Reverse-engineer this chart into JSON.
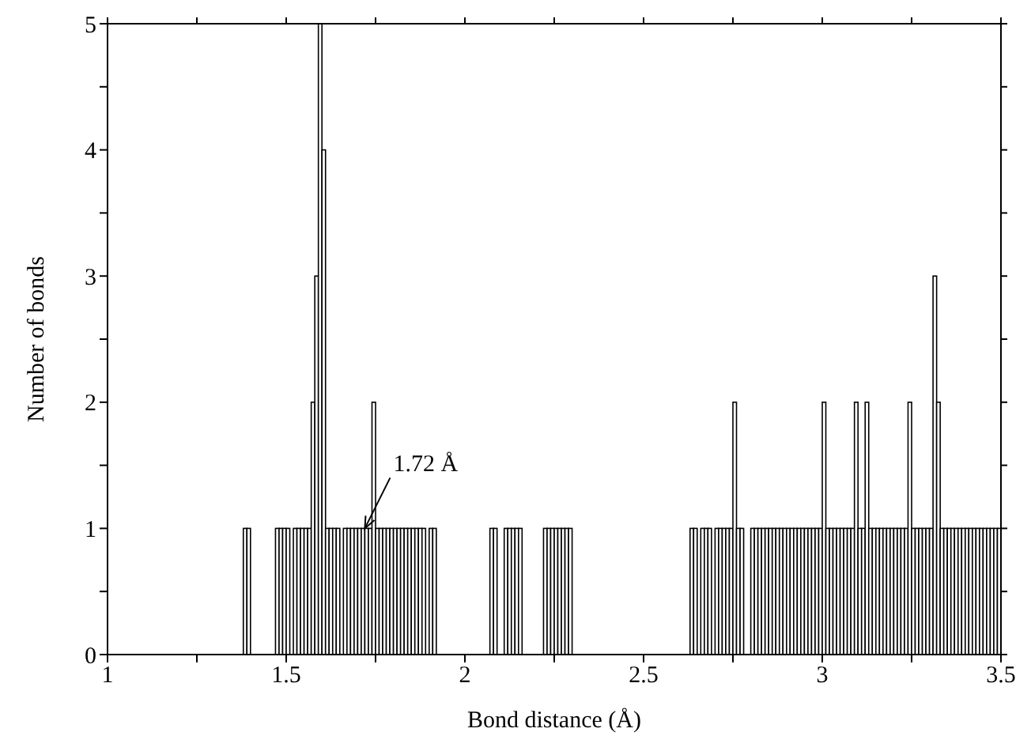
{
  "chart_data": {
    "type": "histogram",
    "xlabel": "Bond distance (Å)",
    "ylabel": "Number of bonds",
    "bins": [
      1.35,
      1.36,
      1.37,
      1.38,
      1.39,
      1.4,
      1.41,
      1.42,
      1.43,
      1.44,
      1.45,
      1.46,
      1.47,
      1.48,
      1.49,
      1.5,
      1.51,
      1.52,
      1.53,
      1.54,
      1.55,
      1.56,
      1.57,
      1.58,
      1.59,
      1.6,
      1.61,
      1.62,
      1.63,
      1.64,
      1.65,
      1.66,
      1.67,
      1.68,
      1.69,
      1.7,
      1.71,
      1.72,
      1.73,
      1.74,
      1.75,
      1.76,
      1.77,
      1.78,
      1.79,
      1.8,
      1.81,
      1.82,
      1.83,
      1.84,
      1.85,
      1.86,
      1.87,
      1.88,
      1.89,
      1.9,
      1.91,
      1.92,
      1.93,
      1.94,
      1.95,
      1.96,
      1.97,
      1.98,
      1.99,
      2.0,
      2.01,
      2.02,
      2.03,
      2.04,
      2.05,
      2.06,
      2.07,
      2.08,
      2.09,
      2.1,
      2.11,
      2.12,
      2.13,
      2.14,
      2.15,
      2.16,
      2.17,
      2.18,
      2.19,
      2.2,
      2.21,
      2.22,
      2.23,
      2.24,
      2.25,
      2.26,
      2.27,
      2.28,
      2.29,
      2.3,
      2.31,
      2.32,
      2.33,
      2.34,
      2.35,
      2.36,
      2.37,
      2.38,
      2.39,
      2.4,
      2.41,
      2.42,
      2.43,
      2.44,
      2.45,
      2.46,
      2.47,
      2.48,
      2.49,
      2.5,
      2.51,
      2.52,
      2.53,
      2.54,
      2.55,
      2.56,
      2.57,
      2.58,
      2.59,
      2.6,
      2.61,
      2.62,
      2.63,
      2.64,
      2.65,
      2.66,
      2.67,
      2.68,
      2.69,
      2.7,
      2.71,
      2.72,
      2.73,
      2.74,
      2.75,
      2.76,
      2.77,
      2.78,
      2.79,
      2.8,
      2.81,
      2.82,
      2.83,
      2.84,
      2.85,
      2.86,
      2.87,
      2.88,
      2.89,
      2.9,
      2.91,
      2.92,
      2.93,
      2.94,
      2.95,
      2.96,
      2.97,
      2.98,
      2.99,
      3.0,
      3.01,
      3.02,
      3.03,
      3.04,
      3.05,
      3.06,
      3.07,
      3.08,
      3.09,
      3.1,
      3.11,
      3.12,
      3.13,
      3.14,
      3.15,
      3.16,
      3.17,
      3.18,
      3.19,
      3.2,
      3.21,
      3.22,
      3.23,
      3.24,
      3.25,
      3.26,
      3.27,
      3.28,
      3.29,
      3.3,
      3.31,
      3.32,
      3.33,
      3.34,
      3.35,
      3.36,
      3.37,
      3.38,
      3.39,
      3.4,
      3.41,
      3.42,
      3.43,
      3.44,
      3.45,
      3.46,
      3.47,
      3.48,
      3.49,
      3.5
    ],
    "values": [
      0,
      0,
      0,
      1,
      1,
      0,
      0,
      0,
      0,
      0,
      0,
      0,
      1,
      1,
      1,
      1,
      0,
      1,
      1,
      1,
      1,
      1,
      2,
      3,
      5,
      4,
      1,
      1,
      1,
      1,
      0,
      1,
      1,
      1,
      1,
      1,
      1,
      1,
      1,
      2,
      1,
      1,
      1,
      1,
      1,
      1,
      1,
      1,
      1,
      1,
      1,
      1,
      1,
      1,
      0,
      1,
      1,
      0,
      0,
      0,
      0,
      0,
      0,
      0,
      0,
      0,
      0,
      0,
      0,
      0,
      0,
      0,
      1,
      1,
      0,
      0,
      1,
      1,
      1,
      1,
      1,
      0,
      0,
      0,
      0,
      0,
      0,
      1,
      1,
      1,
      1,
      1,
      1,
      1,
      1,
      0,
      0,
      0,
      0,
      0,
      0,
      0,
      0,
      0,
      0,
      0,
      0,
      0,
      0,
      0,
      0,
      0,
      0,
      0,
      0,
      0,
      0,
      0,
      0,
      0,
      0,
      0,
      0,
      0,
      0,
      0,
      0,
      0,
      1,
      1,
      0,
      1,
      1,
      1,
      0,
      1,
      1,
      1,
      1,
      1,
      2,
      1,
      1,
      0,
      0,
      1,
      1,
      1,
      1,
      1,
      1,
      1,
      1,
      1,
      1,
      1,
      1,
      1,
      1,
      1,
      1,
      1,
      1,
      1,
      1,
      2,
      1,
      1,
      1,
      1,
      1,
      1,
      1,
      1,
      2,
      1,
      1,
      2,
      1,
      1,
      1,
      1,
      1,
      1,
      1,
      1,
      1,
      1,
      1,
      2,
      1,
      1,
      1,
      1,
      1,
      1,
      3,
      2,
      1,
      1,
      1,
      1,
      1,
      1,
      1,
      1,
      1,
      1,
      1,
      1,
      1,
      1,
      1,
      1,
      1
    ],
    "color": "#ffffff",
    "xlim": [
      1,
      3.5
    ],
    "xticks": [
      1,
      {
        "value": 1.25,
        "label": null
      },
      1.5,
      {
        "value": 1.75,
        "label": null
      },
      2,
      {
        "value": 2.25,
        "label": null
      },
      2.5,
      {
        "value": 2.75,
        "label": null
      },
      3,
      {
        "value": 3.25,
        "label": null
      },
      3.5
    ],
    "ylim": [
      0,
      5
    ],
    "yticks": [
      0,
      {
        "value": 0.5,
        "label": null
      },
      1,
      {
        "value": 1.5,
        "label": null
      },
      2,
      {
        "value": 2.5,
        "label": null
      },
      3,
      {
        "value": 3.5,
        "label": null
      },
      4,
      {
        "value": 4.5,
        "label": null
      },
      5
    ],
    "grid": false,
    "legend": false,
    "annotations": [
      {
        "text": "1.72 Å",
        "x": 1.72,
        "y": 1
      }
    ]
  }
}
